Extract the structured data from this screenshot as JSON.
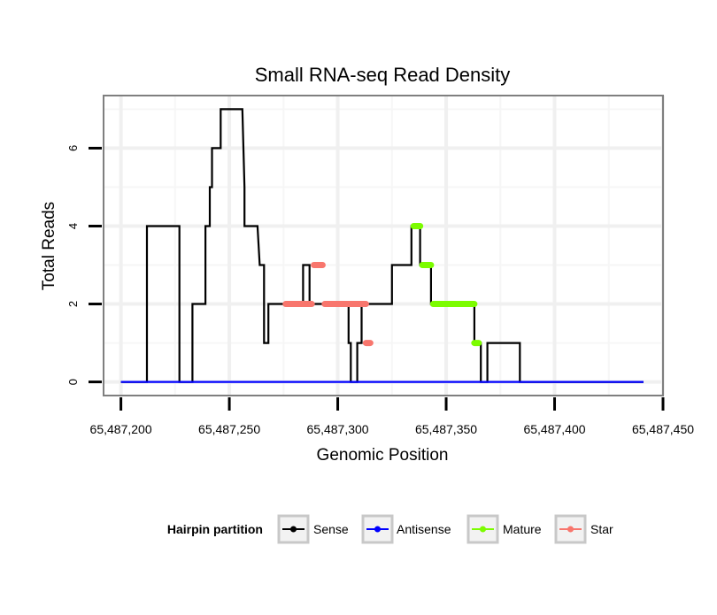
{
  "chart_data": {
    "type": "line",
    "title": "Small RNA-seq Read Density",
    "xlabel": "Genomic Position",
    "ylabel": "Total Reads",
    "xlim": [
      65487192,
      65487450
    ],
    "ylim": [
      -0.35,
      7.35
    ],
    "xticks": [
      65487200,
      65487250,
      65487300,
      65487350,
      65487400,
      65487450
    ],
    "xtick_labels": [
      "65,487,200",
      "65,487,250",
      "65,487,300",
      "65,487,350",
      "65,487,400",
      "65,487,450"
    ],
    "yticks": [
      0,
      2,
      4,
      6
    ],
    "ytick_labels": [
      "0",
      "2",
      "4",
      "6"
    ],
    "grid": true,
    "legend": {
      "title": "Hairpin partition",
      "position": "bottom",
      "entries": [
        "Sense",
        "Antisense",
        "Mature",
        "Star"
      ]
    },
    "series": [
      {
        "name": "Sense",
        "color": "#000000",
        "points": [
          [
            65487200,
            0
          ],
          [
            65487212,
            0
          ],
          [
            65487212,
            4
          ],
          [
            65487227,
            4
          ],
          [
            65487227,
            0
          ],
          [
            65487233,
            0
          ],
          [
            65487233,
            2
          ],
          [
            65487239,
            2
          ],
          [
            65487239,
            4
          ],
          [
            65487241,
            4
          ],
          [
            65487241,
            5
          ],
          [
            65487242,
            5
          ],
          [
            65487242,
            6
          ],
          [
            65487246,
            6
          ],
          [
            65487246,
            7
          ],
          [
            65487256,
            7
          ],
          [
            65487257,
            5
          ],
          [
            65487257,
            4
          ],
          [
            65487263,
            4
          ],
          [
            65487264,
            3
          ],
          [
            65487266,
            3
          ],
          [
            65487266,
            1
          ],
          [
            65487268,
            1
          ],
          [
            65487268,
            2
          ],
          [
            65487284,
            2
          ],
          [
            65487284,
            3
          ],
          [
            65487287,
            3
          ],
          [
            65487287,
            2
          ],
          [
            65487305,
            2
          ],
          [
            65487305,
            1
          ],
          [
            65487306,
            1
          ],
          [
            65487306,
            0
          ],
          [
            65487309,
            0
          ],
          [
            65487309,
            1
          ],
          [
            65487311,
            1
          ],
          [
            65487311,
            2
          ],
          [
            65487325,
            2
          ],
          [
            65487325,
            3
          ],
          [
            65487334,
            3
          ],
          [
            65487334,
            4
          ],
          [
            65487338,
            4
          ],
          [
            65487338,
            3
          ],
          [
            65487343,
            3
          ],
          [
            65487343,
            2
          ],
          [
            65487363,
            2
          ],
          [
            65487363,
            1
          ],
          [
            65487366,
            1
          ],
          [
            65487366,
            0
          ],
          [
            65487369,
            0
          ],
          [
            65487369,
            1
          ],
          [
            65487384,
            1
          ],
          [
            65487384,
            0
          ],
          [
            65487441,
            0
          ]
        ]
      },
      {
        "name": "Antisense",
        "color": "#0000ff",
        "points": [
          [
            65487200,
            0
          ],
          [
            65487441,
            0
          ]
        ]
      },
      {
        "name": "Mature",
        "color": "#7cfc00",
        "segments": [
          {
            "x0": 65487335,
            "x1": 65487338,
            "y": 4
          },
          {
            "x0": 65487339,
            "x1": 65487343,
            "y": 3
          },
          {
            "x0": 65487344,
            "x1": 65487363,
            "y": 2
          },
          {
            "x0": 65487363,
            "x1": 65487365,
            "y": 1
          }
        ]
      },
      {
        "name": "Star",
        "color": "#f8766d",
        "segments": [
          {
            "x0": 65487276,
            "x1": 65487288,
            "y": 2
          },
          {
            "x0": 65487289,
            "x1": 65487293,
            "y": 3
          },
          {
            "x0": 65487294,
            "x1": 65487313,
            "y": 2
          },
          {
            "x0": 65487313,
            "x1": 65487315,
            "y": 1
          }
        ]
      }
    ]
  }
}
